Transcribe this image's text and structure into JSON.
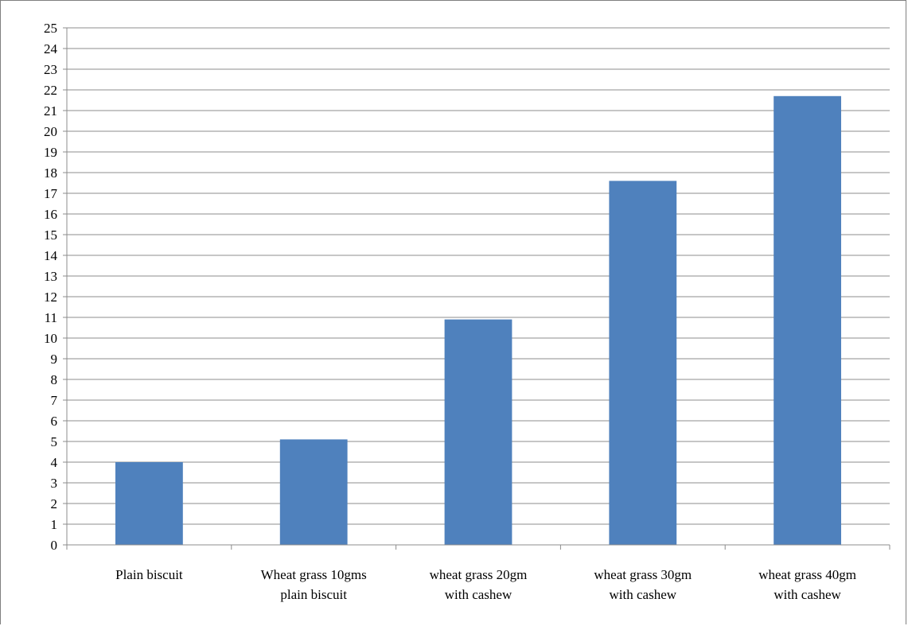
{
  "chart_data": {
    "type": "bar",
    "categories": [
      [
        "Plain biscuit"
      ],
      [
        "Wheat grass 10gms",
        "plain biscuit"
      ],
      [
        "wheat grass 20gm",
        "with cashew"
      ],
      [
        "wheat grass 30gm",
        "with cashew"
      ],
      [
        "wheat grass 40gm",
        "with cashew"
      ]
    ],
    "values": [
      4.0,
      5.1,
      10.9,
      17.6,
      21.7
    ],
    "ylim": [
      0,
      25
    ],
    "ytick_step": 1,
    "grid": true,
    "bar_color": "#4f81bd",
    "title": "",
    "xlabel": "",
    "ylabel": ""
  }
}
